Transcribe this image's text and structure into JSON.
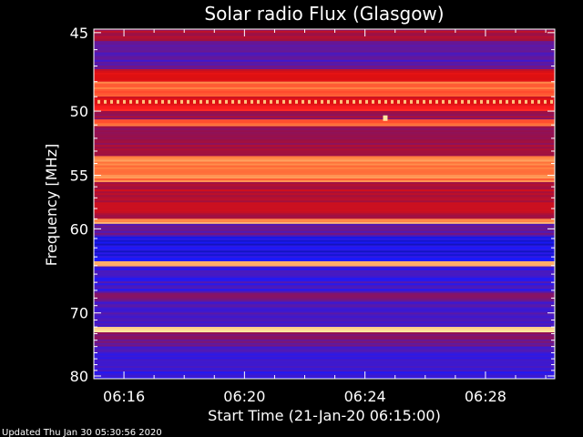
{
  "chart_data": {
    "type": "heatmap",
    "title": "Solar radio Flux (Glasgow)",
    "xlabel": "Start Time (21-Jan-20 06:15:00)",
    "ylabel": "Frequency [MHz]",
    "x_range_minutes": [
      0,
      15.3
    ],
    "x_ticks": [
      {
        "label": "06:16",
        "value": 1
      },
      {
        "label": "06:20",
        "value": 5
      },
      {
        "label": "06:24",
        "value": 9
      },
      {
        "label": "06:28",
        "value": 13
      }
    ],
    "y_range_mhz": [
      44.8,
      80.5
    ],
    "y_scale": "reciprocal",
    "y_ticks": [
      45,
      50,
      55,
      60,
      70,
      80
    ],
    "colormap": [
      "#10107a",
      "#1a1aff",
      "#5a1aa8",
      "#a01040",
      "#e01010",
      "#ff2020",
      "#ff8040",
      "#ffe8a0"
    ],
    "bands": [
      {
        "freq": [
          44.8,
          45.5
        ],
        "level": 0.45
      },
      {
        "freq": [
          45.5,
          47.2
        ],
        "level": 0.28
      },
      {
        "freq": [
          47.2,
          48.0
        ],
        "level": 0.55
      },
      {
        "freq": [
          48.0,
          49.0
        ],
        "level": 0.82
      },
      {
        "freq": [
          49.0,
          49.6
        ],
        "level": 0.55
      },
      {
        "freq": [
          49.6,
          50.0
        ],
        "level": 0.72
      },
      {
        "freq": [
          50.0,
          50.6
        ],
        "level": 0.42
      },
      {
        "freq": [
          50.6,
          51.1
        ],
        "level": 0.8
      },
      {
        "freq": [
          51.1,
          53.4
        ],
        "level": 0.42
      },
      {
        "freq": [
          53.4,
          55.6
        ],
        "level": 0.85
      },
      {
        "freq": [
          55.6,
          59.0
        ],
        "level": 0.48
      },
      {
        "freq": [
          59.0,
          59.5
        ],
        "level": 0.92
      },
      {
        "freq": [
          59.5,
          60.8
        ],
        "level": 0.3
      },
      {
        "freq": [
          60.8,
          63.5
        ],
        "level": 0.13
      },
      {
        "freq": [
          63.5,
          64.1
        ],
        "level": 0.95
      },
      {
        "freq": [
          64.1,
          67.3
        ],
        "level": 0.22
      },
      {
        "freq": [
          67.3,
          68.5
        ],
        "level": 0.32
      },
      {
        "freq": [
          68.5,
          72.0
        ],
        "level": 0.24
      },
      {
        "freq": [
          72.0,
          72.8
        ],
        "level": 1.0
      },
      {
        "freq": [
          72.8,
          75.0
        ],
        "level": 0.34
      },
      {
        "freq": [
          75.0,
          80.5
        ],
        "level": 0.22
      }
    ],
    "bursts": [
      {
        "freq": 49.35,
        "minute": [
          0,
          15.3
        ],
        "level": 0.95,
        "dashed": true
      },
      {
        "freq": 50.5,
        "minute": [
          9.6,
          9.75
        ],
        "level": 1.0
      }
    ]
  },
  "footer": {
    "updated": "Updated Thu Jan 30 05:30:56 2020"
  }
}
